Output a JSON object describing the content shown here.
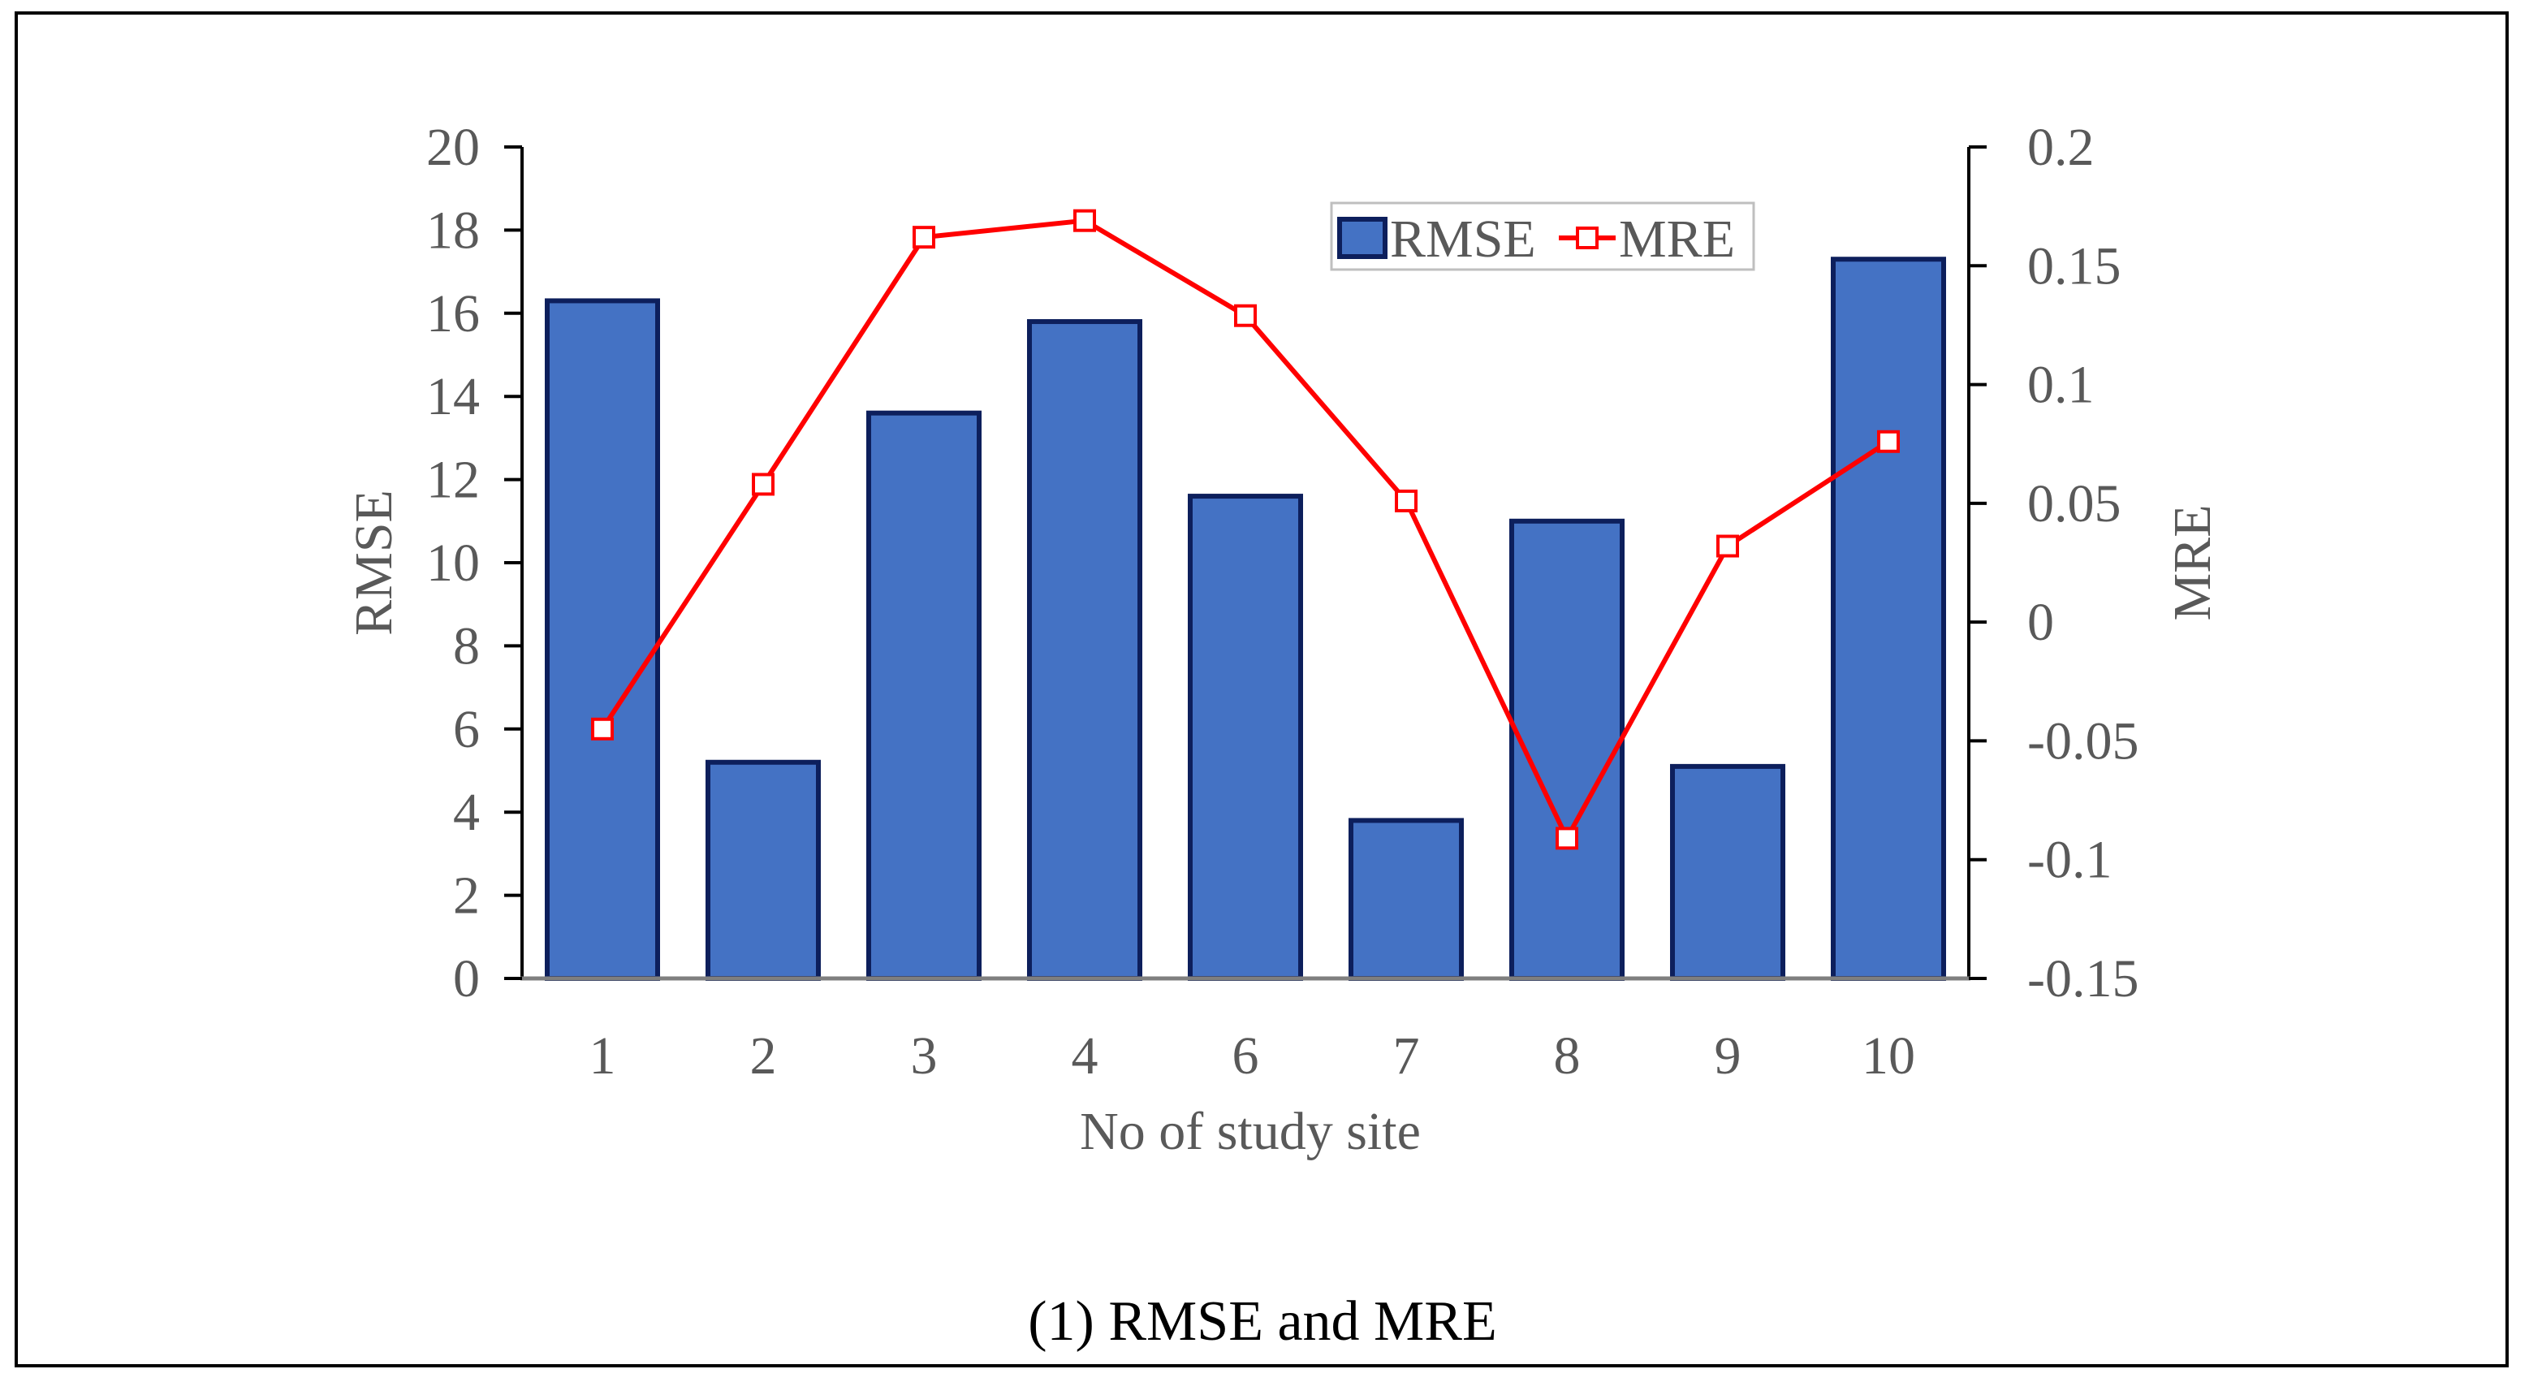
{
  "chart_data": {
    "type": "bar",
    "caption": "(1) RMSE and MRE",
    "xlabel": "No of study site",
    "ylabel_left": "RMSE",
    "ylabel_right": "MRE",
    "categories": [
      "1",
      "2",
      "3",
      "4",
      "6",
      "7",
      "8",
      "9",
      "10"
    ],
    "series": [
      {
        "name": "RMSE",
        "type": "bar",
        "axis": "left",
        "values": [
          16.3,
          5.2,
          13.6,
          15.8,
          11.6,
          3.8,
          11.0,
          5.1,
          17.3
        ]
      },
      {
        "name": "MRE",
        "type": "line",
        "axis": "right",
        "values": [
          -0.045,
          0.058,
          0.162,
          0.169,
          0.129,
          0.051,
          -0.091,
          0.032,
          0.076
        ]
      }
    ],
    "ylim_left": [
      0,
      20
    ],
    "yticks_left": [
      0,
      2,
      4,
      6,
      8,
      10,
      12,
      14,
      16,
      18,
      20
    ],
    "ytick_labels_left": [
      "0",
      "2",
      "4",
      "6",
      "8",
      "10",
      "12",
      "14",
      "16",
      "18",
      "20"
    ],
    "ylim_right": [
      -0.15,
      0.2
    ],
    "yticks_right": [
      -0.15,
      -0.1,
      -0.05,
      0,
      0.05,
      0.1,
      0.15,
      0.2
    ],
    "ytick_labels_right": [
      "-0.15",
      "-0.1",
      "-0.05",
      "0",
      "0.05",
      "0.1",
      "0.15",
      "0.2"
    ],
    "legend": {
      "position": "top-right",
      "entries": [
        "RMSE",
        "MRE"
      ]
    },
    "grid": false,
    "colors": {
      "bar_fill": "#4472C4",
      "bar_edge": "#0D1F5C",
      "line": "#FF0000",
      "marker_fill": "#FFFFFF",
      "axis": "#000000",
      "text": "#595959"
    }
  }
}
